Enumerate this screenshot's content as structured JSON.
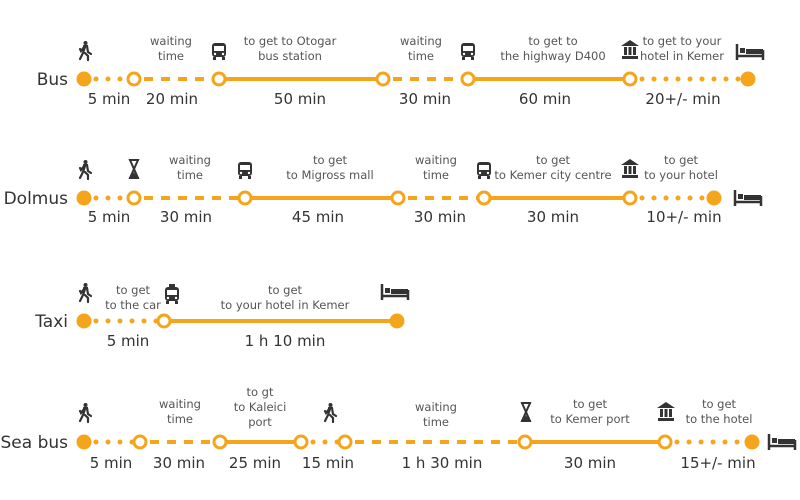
{
  "accent_color": "#f5a51c",
  "rows": [
    {
      "label": "Bus",
      "segments": [
        {
          "style": "dotted",
          "caption": [],
          "duration": "5 min"
        },
        {
          "style": "dashed",
          "caption": [
            "waiting",
            "time"
          ],
          "duration": "20 min"
        },
        {
          "style": "solid",
          "caption": [
            "to get to Otogar",
            "bus station"
          ],
          "duration": "50 min"
        },
        {
          "style": "dashed",
          "caption": [
            "waiting",
            "time"
          ],
          "duration": "30 min"
        },
        {
          "style": "solid",
          "caption": [
            "to get to",
            "the highway D400"
          ],
          "duration": "60 min"
        },
        {
          "style": "dotted",
          "caption": [
            "to get to your",
            "hotel in Kemer"
          ],
          "duration": "20+/- min"
        }
      ],
      "icons": [
        "walker-icon",
        "bus-icon",
        "bus-icon",
        "museum-icon",
        "bed-icon"
      ]
    },
    {
      "label": "Dolmus",
      "segments": [
        {
          "style": "dotted",
          "caption": [],
          "duration": "5 min"
        },
        {
          "style": "dashed",
          "caption": [
            "waiting",
            "time"
          ],
          "duration": "30 min"
        },
        {
          "style": "solid",
          "caption": [
            "to get",
            "to Migross mall"
          ],
          "duration": "45 min"
        },
        {
          "style": "dashed",
          "caption": [
            "waiting",
            "time"
          ],
          "duration": "30 min"
        },
        {
          "style": "solid",
          "caption": [
            "to get",
            "to Kemer city centre"
          ],
          "duration": "30 min"
        },
        {
          "style": "dotted",
          "caption": [
            "to get",
            "to your hotel"
          ],
          "duration": "10+/- min"
        }
      ],
      "icons": [
        "walker-icon",
        "hourglass-icon",
        "bus-icon",
        "bus-icon",
        "museum-icon",
        "bed-icon"
      ]
    },
    {
      "label": "Taxi",
      "segments": [
        {
          "style": "dotted",
          "caption": [
            "to get",
            "to the car"
          ],
          "duration": "5 min"
        },
        {
          "style": "solid",
          "caption": [
            "to get",
            "to your hotel in Kemer"
          ],
          "duration": "1 h 10 min"
        }
      ],
      "icons": [
        "walker-icon",
        "taxi-icon",
        "bed-icon"
      ]
    },
    {
      "label": "Sea bus",
      "segments": [
        {
          "style": "dotted",
          "caption": [],
          "duration": "5 min"
        },
        {
          "style": "dashed",
          "caption": [
            "waiting",
            "time"
          ],
          "duration": "30 min"
        },
        {
          "style": "solid",
          "caption": [
            "to gt",
            "to Kaleici",
            "port"
          ],
          "duration": "25 min"
        },
        {
          "style": "dotted",
          "caption": [],
          "duration": "15 min"
        },
        {
          "style": "dashed",
          "caption": [
            "waiting",
            "time"
          ],
          "duration": "1 h 30 min"
        },
        {
          "style": "solid",
          "caption": [
            "to get",
            "to Kemer port"
          ],
          "duration": "30 min"
        },
        {
          "style": "dotted",
          "caption": [
            "to get",
            "to the hotel"
          ],
          "duration": "15+/- min"
        }
      ],
      "icons": [
        "walker-icon",
        "walker-icon",
        "hourglass-icon",
        "museum-icon",
        "bed-icon"
      ]
    }
  ]
}
